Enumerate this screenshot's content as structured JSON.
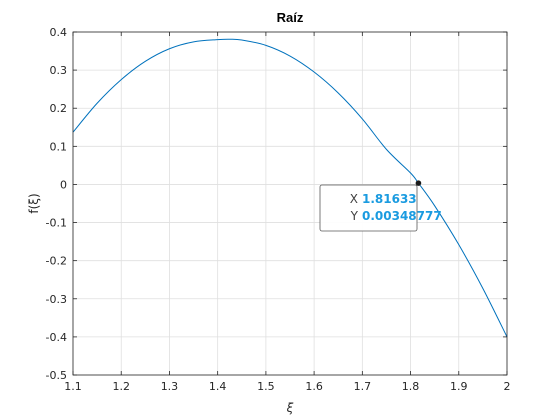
{
  "chart_data": {
    "type": "line",
    "title": "Raíz",
    "xlabel": "ξ",
    "ylabel": "f(ξ)",
    "xlim": [
      1.1,
      2.0
    ],
    "ylim": [
      -0.5,
      0.4
    ],
    "xticks": [
      1.1,
      1.2,
      1.3,
      1.4,
      1.5,
      1.6,
      1.7,
      1.8,
      1.9,
      2.0
    ],
    "xtick_labels": [
      "1.1",
      "1.2",
      "1.3",
      "1.4",
      "1.5",
      "1.6",
      "1.7",
      "1.8",
      "1.9",
      "2"
    ],
    "yticks": [
      -0.5,
      -0.4,
      -0.3,
      -0.2,
      -0.1,
      0,
      0.1,
      0.2,
      0.3,
      0.4
    ],
    "ytick_labels": [
      "-0.5",
      "-0.4",
      "-0.3",
      "-0.2",
      "-0.1",
      "0",
      "0.1",
      "0.2",
      "0.3",
      "0.4"
    ],
    "grid": true,
    "series": [
      {
        "color": "#0072bd",
        "x": [
          1.1,
          1.15,
          1.2,
          1.25,
          1.3,
          1.35,
          1.4,
          1.425,
          1.45,
          1.5,
          1.55,
          1.6,
          1.65,
          1.7,
          1.75,
          1.8,
          1.81633,
          1.85,
          1.9,
          1.95,
          2.0
        ],
        "y": [
          0.137,
          0.213,
          0.275,
          0.323,
          0.356,
          0.374,
          0.38,
          0.381,
          0.379,
          0.365,
          0.337,
          0.295,
          0.24,
          0.172,
          0.092,
          0.03,
          0.00348777,
          -0.056,
          -0.158,
          -0.273,
          -0.4
        ]
      }
    ],
    "datatip": {
      "point_color": "#1a1a1a",
      "x_key": "X",
      "x_value": "1.81633",
      "y_key": "Y",
      "y_value": "0.00348777",
      "x": 1.81633,
      "y": 0.00348777
    }
  }
}
